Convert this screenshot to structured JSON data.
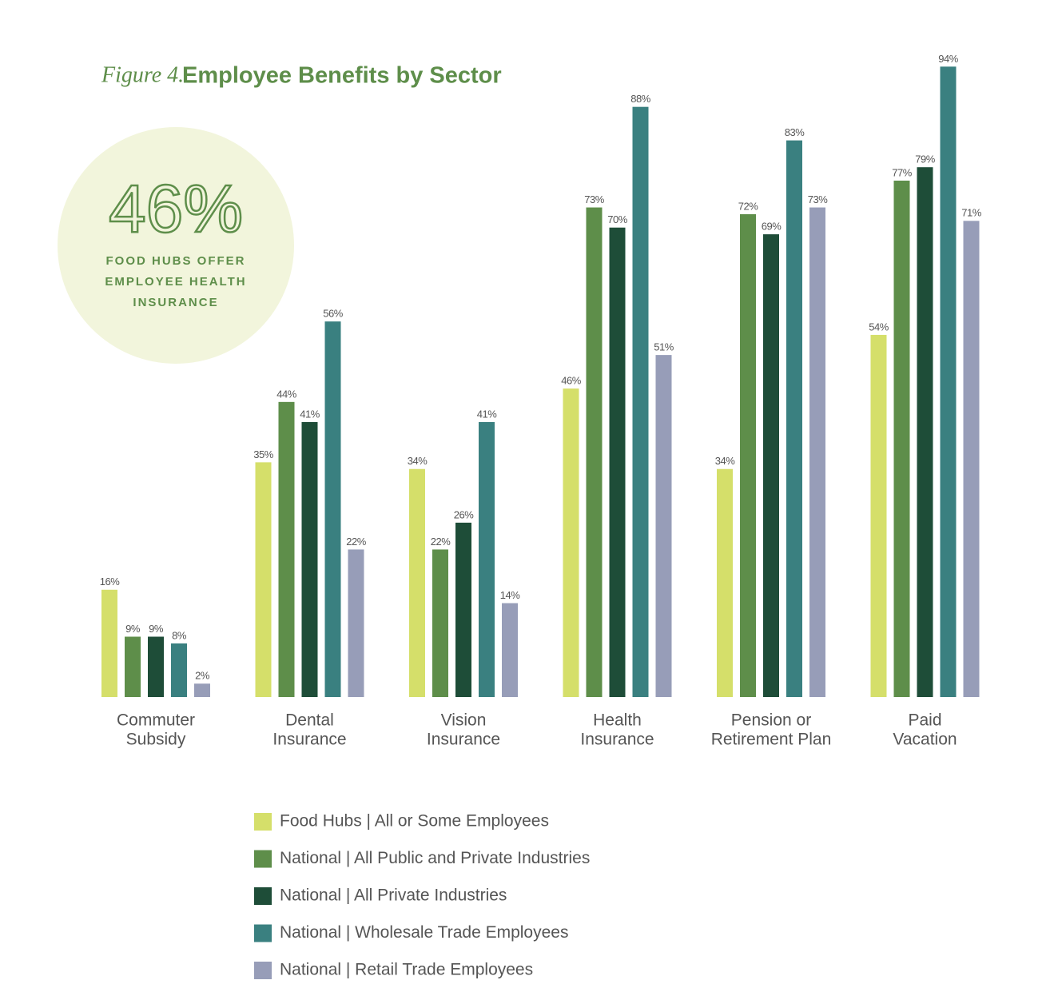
{
  "chart_data": {
    "type": "bar",
    "figure_label": "Figure 4.",
    "title": "Employee Benefits by Sector",
    "annotation": {
      "value_label": "46%",
      "lines": [
        "FOOD HUBS OFFER",
        "EMPLOYEE HEALTH",
        "INSURANCE"
      ]
    },
    "categories": [
      [
        "Commuter",
        "Subsidy"
      ],
      [
        "Dental",
        "Insurance"
      ],
      [
        "Vision",
        "Insurance"
      ],
      [
        "Health",
        "Insurance"
      ],
      [
        "Pension or",
        "Retirement Plan"
      ],
      [
        "Paid",
        "Vacation"
      ]
    ],
    "ylim": [
      0,
      100
    ],
    "series": [
      {
        "name": "Food Hubs | All or Some Employees",
        "color": "#d5df6a",
        "values": [
          16,
          35,
          34,
          46,
          34,
          54
        ],
        "value_labels": [
          "16%",
          "35%",
          "34%",
          "46%",
          "34%",
          "54%"
        ]
      },
      {
        "name": "National | All Public and Private Industries",
        "color": "#5e8e4a",
        "values": [
          9,
          44,
          22,
          73,
          72,
          77
        ],
        "value_labels": [
          "9%",
          "44%",
          "22%",
          "73%",
          "72%",
          "77%"
        ]
      },
      {
        "name": "National | All Private Industries",
        "color": "#1e4d38",
        "values": [
          9,
          41,
          26,
          70,
          69,
          79
        ],
        "value_labels": [
          "9%",
          "41%",
          "26%",
          "70%",
          "69%",
          "79%"
        ]
      },
      {
        "name": "National | Wholesale Trade Employees",
        "color": "#3a8080",
        "values": [
          8,
          56,
          41,
          88,
          83,
          94
        ],
        "value_labels": [
          "8%",
          "56%",
          "41%",
          "88%",
          "83%",
          "94%"
        ]
      },
      {
        "name": "National | Retail Trade Employees",
        "color": "#979db8",
        "values": [
          2,
          22,
          14,
          51,
          73,
          71
        ],
        "value_labels": [
          "2%",
          "22%",
          "14%",
          "51%",
          "73%",
          "71%"
        ]
      }
    ]
  }
}
